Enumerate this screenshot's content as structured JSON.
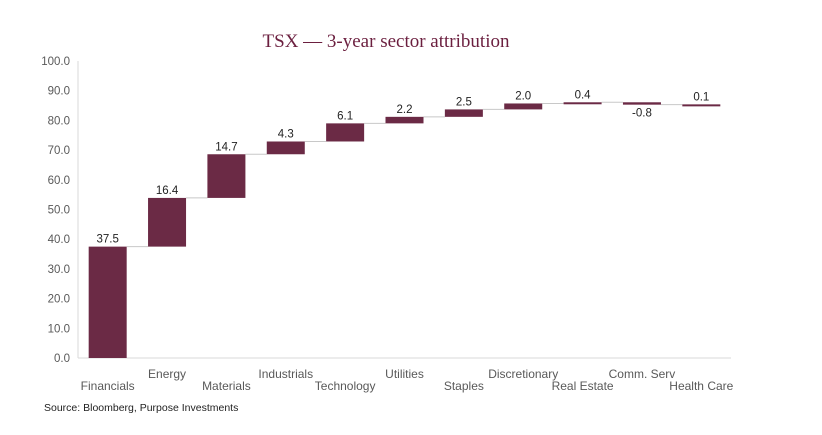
{
  "chart_data": {
    "type": "waterfall",
    "title": "TSX — 3-year sector attribution",
    "categories": [
      "Financials",
      "Energy",
      "Materials",
      "Industrials",
      "Technology",
      "Utilities",
      "Staples",
      "Discretionary",
      "Real Estate",
      "Comm. Serv",
      "Health Care"
    ],
    "values": [
      37.5,
      16.4,
      14.7,
      4.3,
      6.1,
      2.2,
      2.5,
      2.0,
      0.4,
      -0.8,
      0.1
    ],
    "data_labels": [
      "37.5",
      "16.4",
      "14.7",
      "4.3",
      "6.1",
      "2.2",
      "2.5",
      "2.0",
      "0.4",
      "-0.8",
      "0.1"
    ],
    "yticks": [
      "0.0",
      "10.0",
      "20.0",
      "30.0",
      "40.0",
      "50.0",
      "60.0",
      "70.0",
      "80.0",
      "90.0",
      "100.0"
    ],
    "ylim": [
      0,
      100
    ],
    "grid": false,
    "legend": "none",
    "bar_color": "#6b2a45",
    "connector_color": "#c8c8c8",
    "source": "Source: Bloomberg, Purpose Investments"
  }
}
